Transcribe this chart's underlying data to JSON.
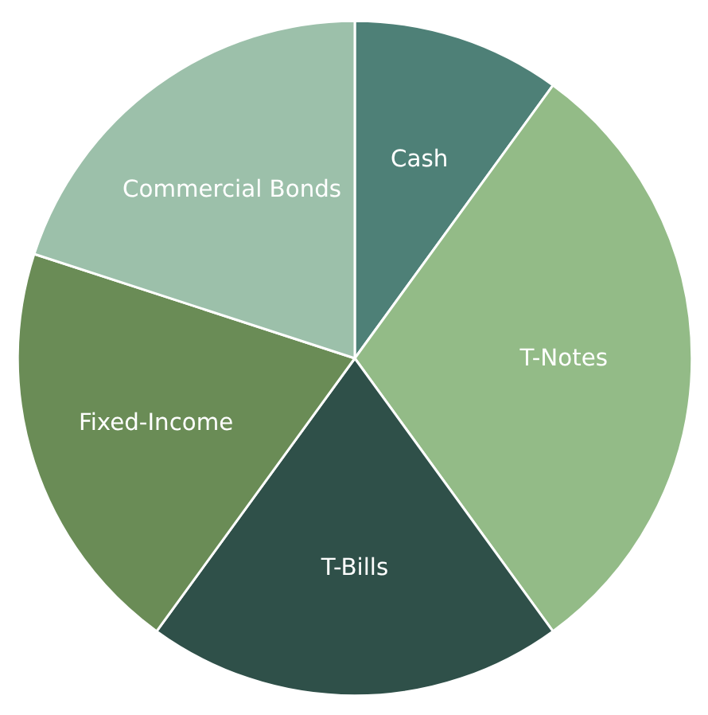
{
  "chart_data": {
    "type": "pie",
    "categories": [
      "Cash",
      "T-Notes",
      "T-Bills",
      "Fixed-Income",
      "Commercial Bonds"
    ],
    "values": [
      10,
      30,
      20,
      20,
      20
    ],
    "colors": [
      "#4e8077",
      "#93bb87",
      "#2f5049",
      "#6a8c56",
      "#9cc0aa"
    ]
  }
}
